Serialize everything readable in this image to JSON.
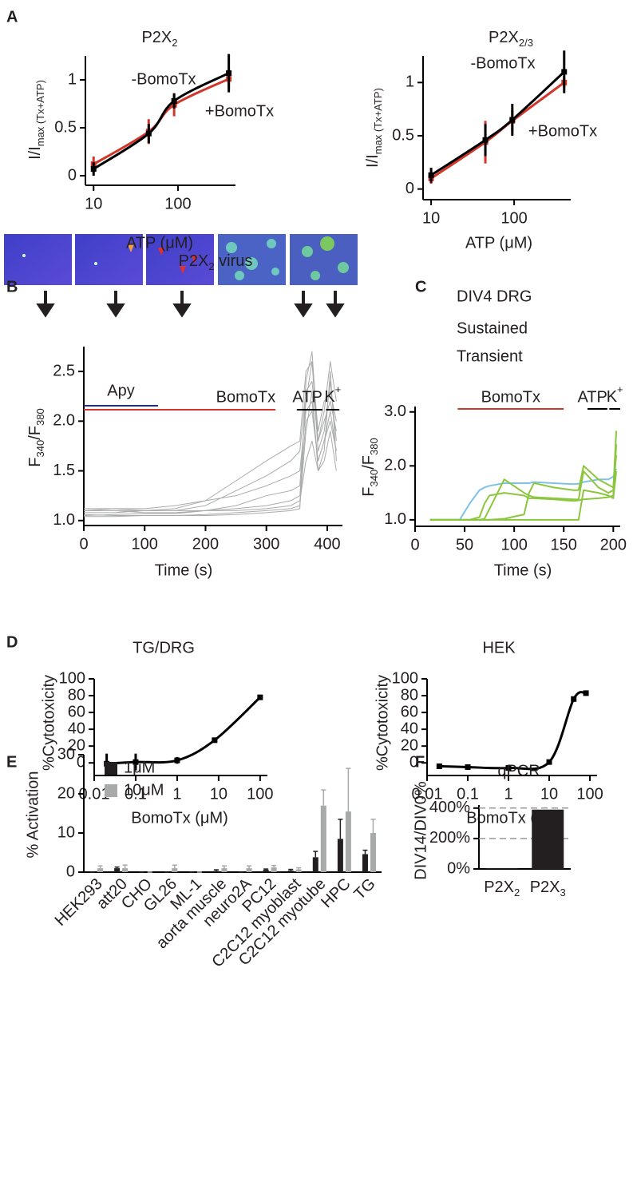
{
  "chart_data": [
    {
      "panel": "A",
      "type": "line",
      "title": [
        {
          "text": "P2X"
        },
        {
          "sub": "2"
        }
      ],
      "x_label": "ATP (μM)",
      "y_label": [
        {
          "text": "I/I"
        },
        {
          "sub": "max (Tx+ATP)"
        }
      ],
      "xscale": "log",
      "xlim": [
        8,
        480
      ],
      "ylim": [
        -0.1,
        1.25
      ],
      "xticks": [
        10,
        100
      ],
      "yticks": [
        0,
        0.5,
        1
      ],
      "curve": "smooth",
      "legend": "inline",
      "x": [
        10,
        45,
        90,
        400
      ],
      "series": [
        {
          "name": "+BomoTx",
          "color": "#d0372a",
          "values": [
            0.12,
            0.46,
            0.74,
            1.01
          ],
          "errors": [
            0.08,
            0.13,
            0.12,
            0.1
          ]
        },
        {
          "name": "-BomoTx",
          "color": "#000000",
          "values": [
            0.07,
            0.44,
            0.78,
            1.07
          ],
          "errors": [
            0.07,
            0.1,
            0.08,
            0.2
          ]
        }
      ]
    },
    {
      "type": "line",
      "title": [
        {
          "text": "P2X"
        },
        {
          "sub": "2/3"
        }
      ],
      "x_label": "ATP (μM)",
      "y_label": [
        {
          "text": "I/I"
        },
        {
          "sub": "max (Tx+ATP)"
        }
      ],
      "xscale": "log",
      "xlim": [
        8,
        480
      ],
      "ylim": [
        -0.1,
        1.25
      ],
      "xticks": [
        10,
        100
      ],
      "yticks": [
        0,
        0.5,
        1
      ],
      "curve": "smooth",
      "legend": "inline",
      "x": [
        10,
        45,
        95,
        400
      ],
      "series": [
        {
          "name": "+BomoTx",
          "color": "#d0372a",
          "values": [
            0.1,
            0.44,
            0.64,
            1.0
          ],
          "errors": [
            0.05,
            0.2,
            0.1,
            0.05
          ]
        },
        {
          "name": "-BomoTx",
          "color": "#000000",
          "values": [
            0.13,
            0.46,
            0.65,
            1.1
          ],
          "errors": [
            0.07,
            0.15,
            0.15,
            0.2
          ]
        }
      ]
    },
    {
      "panel": "B",
      "type": "line",
      "title": [
        {
          "text": "P2X"
        },
        {
          "sub": "2"
        },
        {
          "text": " virus"
        }
      ],
      "x_label": "Time (s)",
      "y_label": [
        {
          "text": "F"
        },
        {
          "sub": "340"
        },
        {
          "text": "/F"
        },
        {
          "sub": "380"
        }
      ],
      "xlim": [
        0,
        425
      ],
      "ylim": [
        0.95,
        2.75
      ],
      "xticks": [
        0,
        100,
        200,
        300,
        400
      ],
      "yticks": [
        {
          "value": 1,
          "label": "1.0"
        },
        {
          "value": 1.5,
          "label": "1.5"
        },
        {
          "value": 2,
          "label": "2.0"
        },
        {
          "value": 2.5,
          "label": "2.5"
        }
      ],
      "x": [
        0,
        50,
        100,
        150,
        200,
        250,
        300,
        340,
        355,
        365,
        375,
        385,
        395,
        405,
        415
      ],
      "series": [
        {
          "color": "#a9abaa",
          "values": [
            1.1,
            1.1,
            1.1,
            1.12,
            1.2,
            1.4,
            1.6,
            1.75,
            1.8,
            2.5,
            2.6,
            1.9,
            2.2,
            2.3,
            2.0
          ]
        },
        {
          "color": "#a9abaa",
          "values": [
            1.08,
            1.08,
            1.1,
            1.1,
            1.15,
            1.3,
            1.45,
            1.6,
            1.7,
            2.3,
            2.4,
            1.8,
            2.0,
            2.2,
            1.9
          ]
        },
        {
          "color": "#a9abaa",
          "values": [
            1.05,
            1.06,
            1.07,
            1.07,
            1.1,
            1.15,
            1.25,
            1.3,
            1.35,
            2.2,
            2.6,
            1.7,
            1.9,
            2.4,
            1.8
          ]
        },
        {
          "color": "#a9abaa",
          "values": [
            1.1,
            1.12,
            1.1,
            1.1,
            1.1,
            1.12,
            1.15,
            1.2,
            1.25,
            2.0,
            2.1,
            1.6,
            1.8,
            2.0,
            1.7
          ]
        },
        {
          "color": "#a9abaa",
          "values": [
            1.06,
            1.05,
            1.05,
            1.05,
            1.06,
            1.08,
            1.1,
            1.12,
            1.15,
            1.9,
            2.3,
            1.5,
            1.7,
            2.5,
            1.6
          ]
        },
        {
          "color": "#a9abaa",
          "values": [
            1.1,
            1.1,
            1.08,
            1.08,
            1.1,
            1.1,
            1.12,
            1.15,
            1.2,
            1.6,
            1.8,
            1.5,
            1.6,
            1.9,
            1.5
          ]
        },
        {
          "color": "#a9abaa",
          "values": [
            1.04,
            1.04,
            1.05,
            1.05,
            1.05,
            1.06,
            1.08,
            1.1,
            1.12,
            2.4,
            2.7,
            1.8,
            2.1,
            2.6,
            2.2
          ]
        },
        {
          "color": "#a9abaa",
          "values": [
            1.12,
            1.12,
            1.12,
            1.15,
            1.2,
            1.25,
            1.35,
            1.45,
            1.5,
            2.1,
            2.2,
            1.6,
            1.8,
            2.1,
            1.7
          ]
        }
      ],
      "periods": [
        {
          "text": "Apy",
          "color": "#1c2aa0",
          "start": 0,
          "end": 122
        },
        {
          "text": "BomoTx",
          "color": "#d0372a",
          "start": 0,
          "end": 315
        },
        {
          "text": "ATP",
          "color": "#000000",
          "start": 350,
          "end": 392
        },
        {
          "text": [
            {
              "text": "K"
            },
            {
              "sup": "+"
            }
          ],
          "color": "#000000",
          "start": 398,
          "end": 420
        }
      ]
    },
    {
      "panel": "C",
      "type": "line",
      "title": "DIV4 DRG",
      "x_label": "Time (s)",
      "y_label": [
        {
          "text": "F"
        },
        {
          "sub": "340"
        },
        {
          "text": "/F"
        },
        {
          "sub": "380"
        }
      ],
      "xlim": [
        0,
        207
      ],
      "ylim": [
        0.88,
        3.1
      ],
      "xticks": [
        0,
        50,
        100,
        150,
        200
      ],
      "yticks": [
        {
          "value": 1,
          "label": "1.0"
        },
        {
          "value": 2,
          "label": "2.0"
        },
        {
          "value": 3,
          "label": "3.0"
        }
      ],
      "legend": "top-left",
      "x": [
        15,
        45,
        55,
        65,
        70,
        75,
        90,
        110,
        115,
        120,
        140,
        160,
        165,
        170,
        185,
        195,
        200,
        203
      ],
      "series": [
        {
          "name": "Sustained",
          "color": "#7ec3e6",
          "values": [
            1.0,
            1.0,
            1.3,
            1.55,
            1.6,
            1.63,
            1.68,
            1.68,
            1.68,
            1.7,
            1.68,
            1.66,
            1.67,
            1.7,
            1.75,
            1.75,
            1.8,
            1.95
          ]
        },
        {
          "name": "Transient",
          "color": "#8cc63f",
          "values": [
            1.0,
            1.0,
            1.0,
            1.05,
            1.3,
            1.45,
            1.5,
            1.45,
            1.4,
            1.4,
            1.38,
            1.35,
            1.36,
            1.38,
            1.4,
            1.42,
            1.45,
            2.4
          ]
        },
        {
          "color": "#8cc63f",
          "values": [
            1.0,
            1.0,
            1.0,
            1.0,
            1.02,
            1.2,
            1.75,
            1.5,
            1.45,
            1.42,
            1.4,
            1.38,
            1.38,
            1.9,
            1.6,
            1.5,
            1.55,
            2.65
          ]
        },
        {
          "color": "#8cc63f",
          "values": [
            1.0,
            1.0,
            1.0,
            1.0,
            1.0,
            1.0,
            1.02,
            1.1,
            1.5,
            1.68,
            1.6,
            1.55,
            1.55,
            2.0,
            1.75,
            1.65,
            1.6,
            2.2
          ]
        },
        {
          "color": "#8cc63f",
          "values": [
            1.0,
            1.0,
            1.0,
            1.0,
            1.0,
            1.0,
            1.0,
            1.0,
            1.0,
            1.0,
            1.0,
            1.0,
            1.0,
            1.55,
            1.5,
            1.45,
            1.4,
            1.9
          ]
        }
      ],
      "periods": [
        {
          "text": "BomoTx",
          "color": "#d0372a",
          "start": 43,
          "end": 150
        },
        {
          "text": "ATP",
          "color": "#000000",
          "start": 174,
          "end": 194
        },
        {
          "text": [
            {
              "text": "K"
            },
            {
              "sup": "+"
            }
          ],
          "color": "#000000",
          "start": 196,
          "end": 207
        }
      ]
    },
    {
      "panel": "D",
      "type": "line",
      "title": "TG/DRG",
      "x_label": "BomoTx (μM)",
      "y_label": "%Cytotoxicity",
      "xscale": "log",
      "xlim": [
        0.01,
        150
      ],
      "ylim": [
        -15,
        100
      ],
      "xticks": [
        0.01,
        0.1,
        1,
        10,
        100
      ],
      "yticks": [
        0,
        20,
        40,
        60,
        80,
        100
      ],
      "curve": "smooth",
      "x": [
        0.02,
        0.1,
        1,
        8,
        100
      ],
      "series": [
        {
          "color": "#000000",
          "values": [
            -1,
            1,
            3,
            27,
            78
          ],
          "errors": [
            12,
            10,
            4,
            3,
            1
          ]
        }
      ]
    },
    {
      "type": "line",
      "title": "HEK",
      "x_label": "BomoTx (μM)",
      "y_label": "%Cytotoxicity",
      "xscale": "log",
      "xlim": [
        0.01,
        150
      ],
      "ylim": [
        -15,
        100
      ],
      "xticks": [
        0.01,
        0.1,
        1,
        10,
        100
      ],
      "yticks": [
        0,
        20,
        40,
        60,
        80,
        100
      ],
      "curve": "smooth",
      "x": [
        0.02,
        0.1,
        1,
        10,
        40,
        80
      ],
      "series": [
        {
          "color": "#000000",
          "values": [
            -4,
            -5,
            -6,
            1,
            76,
            83
          ],
          "errors": [
            3,
            1,
            1,
            2,
            3,
            1
          ]
        }
      ]
    },
    {
      "panel": "E",
      "type": "bar",
      "y_label": "% Activation",
      "ylim": [
        0,
        30
      ],
      "yticks": [
        0,
        10,
        20,
        30
      ],
      "legend": "top-left",
      "categories": [
        "HEK293",
        "att20",
        "CHO",
        "GL26",
        "ML-1",
        "aorta muscle",
        "neuro2A",
        "PC12",
        "C2C12 myoblast",
        "C2C12 myotube",
        "HPC",
        "TG"
      ],
      "series": [
        {
          "name": "1μM",
          "color": "#231f20",
          "values": [
            0,
            1,
            0,
            0,
            0,
            0.3,
            0,
            0.6,
            0.4,
            3.8,
            8.5,
            4.6
          ],
          "errors": [
            0,
            0.3,
            0,
            0,
            0,
            0.3,
            0,
            0.2,
            0.3,
            1.5,
            5,
            1
          ]
        },
        {
          "name": "10μM",
          "color": "#a8aaa9",
          "values": [
            1,
            1,
            0,
            1,
            0,
            1,
            1,
            1.2,
            0.7,
            17,
            15.5,
            10
          ],
          "errors": [
            0.6,
            0.8,
            0,
            0.8,
            0,
            0.6,
            0.6,
            0.5,
            0.4,
            4,
            11,
            3.5
          ]
        }
      ]
    },
    {
      "panel": "F",
      "type": "bar",
      "title": "qPCR",
      "y_label": "DIV14/DIV0%",
      "ylim": [
        0,
        420
      ],
      "grid": true,
      "yticks": [
        {
          "value": 0,
          "label": "0%"
        },
        {
          "value": 200,
          "label": "200%"
        },
        {
          "value": 400,
          "label": "400%"
        }
      ],
      "categories": [
        [
          {
            "text": "P2X"
          },
          {
            "sub": "2"
          }
        ],
        [
          {
            "text": "P2X"
          },
          {
            "sub": "3"
          }
        ]
      ],
      "values": [
        5,
        390
      ],
      "color": "#231f20"
    }
  ]
}
